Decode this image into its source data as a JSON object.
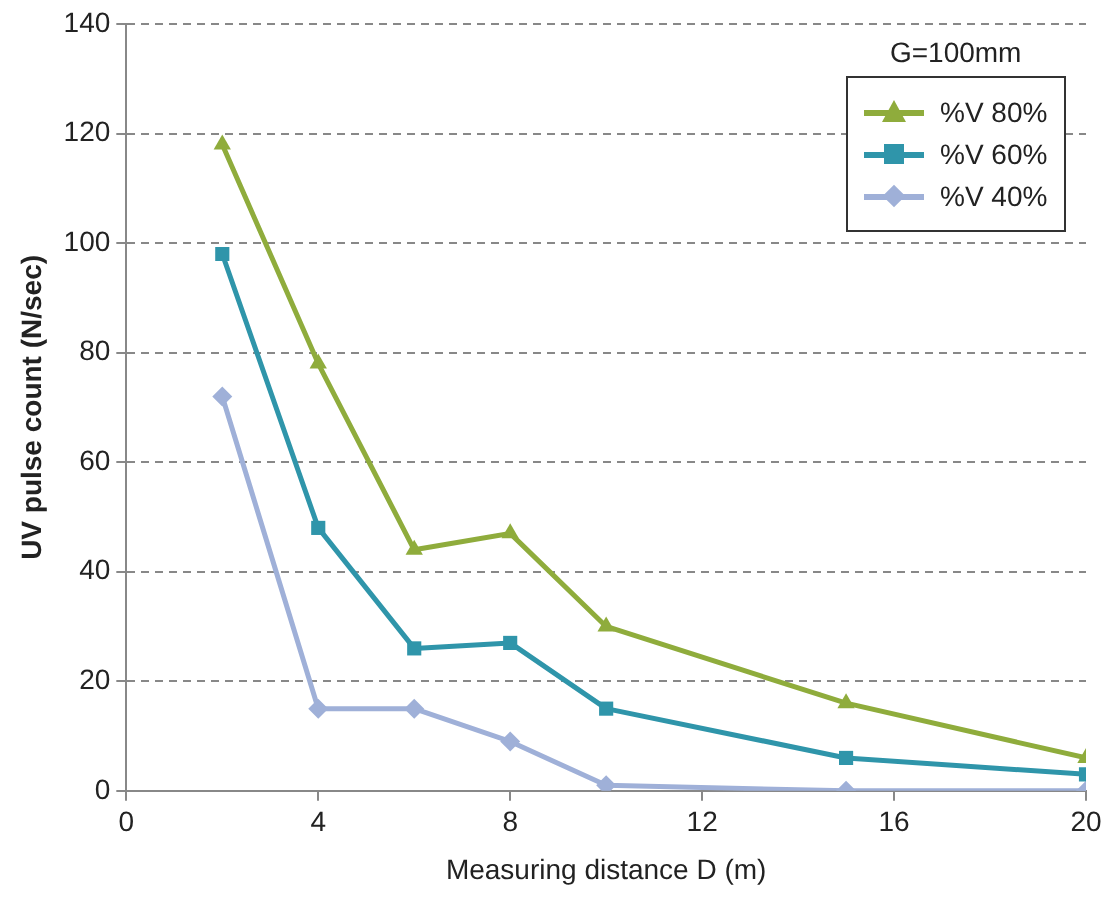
{
  "chart_data": {
    "type": "line",
    "xlabel": "Measuring distance D (m)",
    "ylabel": "UV pulse count (N/sec)",
    "legend_title": "G=100mm",
    "x": [
      2,
      4,
      6,
      8,
      10,
      15,
      20
    ],
    "series": [
      {
        "name": "%V 80%",
        "color": "#8fac3c",
        "marker": "triangle",
        "values": [
          118,
          78,
          44,
          47,
          30,
          16,
          6
        ]
      },
      {
        "name": "%V 60%",
        "color": "#2f95aa",
        "marker": "square",
        "values": [
          98,
          48,
          26,
          27,
          15,
          6,
          3
        ]
      },
      {
        "name": "%V 40%",
        "color": "#9fb0d8",
        "marker": "diamond",
        "values": [
          72,
          15,
          15,
          9,
          1,
          0,
          0
        ]
      }
    ],
    "xlim": [
      0,
      20
    ],
    "xticks": [
      0,
      4,
      8,
      12,
      16,
      20
    ],
    "ylim": [
      0,
      140
    ],
    "yticks": [
      0,
      20,
      40,
      60,
      80,
      100,
      120,
      140
    ],
    "grid": "y",
    "legend": "top right",
    "line_style": "solid"
  }
}
